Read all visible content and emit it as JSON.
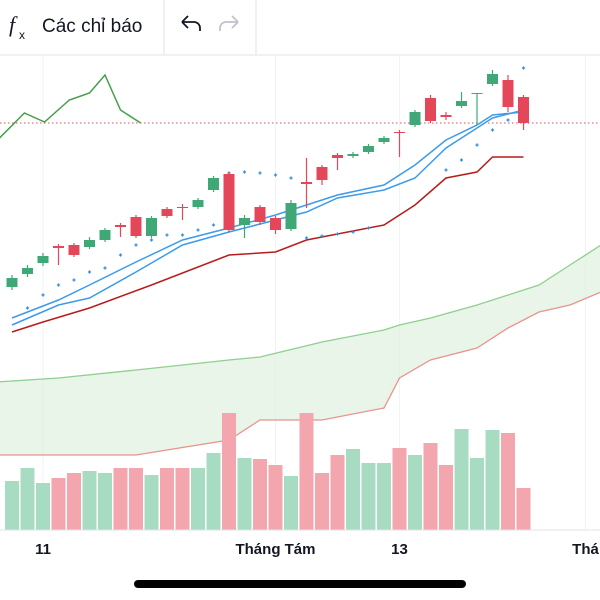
{
  "toolbar": {
    "icon": [
      "f",
      "x"
    ],
    "label": "Các chỉ báo"
  },
  "chart_data": {
    "type": "candlestick",
    "xlim": [
      -0.774,
      37.935
    ],
    "ylim": [
      0,
      475
    ],
    "xticks": [
      {
        "value": 2,
        "label": "11"
      },
      {
        "value": 17,
        "label": "Tháng Tám"
      },
      {
        "value": 25,
        "label": "13"
      },
      {
        "value": 37,
        "label": "Thá"
      }
    ],
    "grid": true,
    "candles": {
      "up_color": "#3fa876",
      "down_color": "#e5475a",
      "open": [
        243,
        256,
        267,
        284,
        285,
        283,
        290,
        305,
        313,
        294,
        321,
        323,
        323,
        340,
        356,
        305,
        323,
        312,
        301,
        348,
        363,
        375,
        374,
        378,
        388,
        398,
        405,
        432,
        415,
        424,
        436,
        446,
        450,
        433
      ],
      "high": [
        255,
        265,
        277,
        286,
        287,
        293,
        302,
        307,
        315,
        314,
        323,
        326,
        332,
        354,
        358,
        315,
        325,
        314,
        330,
        372,
        365,
        377,
        378,
        386,
        394,
        400,
        420,
        435,
        418,
        438,
        437,
        460,
        455,
        435
      ],
      "low": [
        240,
        253,
        264,
        265,
        273,
        281,
        288,
        293,
        292,
        292,
        312,
        310,
        321,
        338,
        298,
        292,
        305,
        296,
        299,
        322,
        345,
        360,
        372,
        376,
        386,
        373,
        403,
        407,
        410,
        422,
        405,
        444,
        418,
        400
      ],
      "close": [
        252,
        262,
        274,
        282,
        275,
        290,
        300,
        303,
        294,
        312,
        314,
        322,
        330,
        352,
        300,
        312,
        308,
        300,
        327,
        346,
        350,
        372,
        376,
        384,
        392,
        397,
        418,
        409,
        413,
        429,
        437,
        456,
        423,
        407
      ]
    },
    "volume": {
      "up_color": "#a8dcc2",
      "down_color": "#f4a6ae",
      "values": [
        49,
        62,
        47,
        52,
        57,
        59,
        57,
        62,
        62,
        55,
        62,
        62,
        62,
        77,
        117,
        72,
        71,
        65,
        54,
        117,
        57,
        75,
        81,
        67,
        67,
        82,
        75,
        87,
        65,
        101,
        72,
        100,
        97,
        42
      ]
    },
    "cloud": {
      "fill": "#d8efd8",
      "upper_color": "#8fcf8f",
      "lower_color": "#e8948c",
      "x": [
        -1,
        3,
        8,
        14,
        16,
        20,
        24,
        25,
        27,
        30,
        32,
        34,
        36,
        38
      ],
      "upper": [
        148,
        152,
        160,
        170,
        173,
        188,
        200,
        205,
        212,
        225,
        235,
        245,
        265,
        285
      ],
      "lower": [
        75,
        75,
        75,
        90,
        110,
        110,
        122,
        152,
        170,
        182,
        202,
        218,
        225,
        238
      ]
    },
    "lines": [
      {
        "color": "#3d9be9",
        "x": [
          0,
          3,
          5,
          8,
          11,
          14,
          17,
          19,
          21,
          24,
          26,
          28,
          30,
          31,
          33
        ],
        "values": [
          212,
          230,
          245,
          268,
          290,
          302,
          315,
          325,
          335,
          345,
          365,
          390,
          405,
          415,
          418
        ]
      },
      {
        "color": "#3d9be9",
        "x": [
          0,
          3,
          5,
          8,
          11,
          14,
          17,
          19,
          21,
          24,
          26,
          28,
          30,
          31,
          33
        ],
        "values": [
          205,
          225,
          232,
          258,
          285,
          298,
          310,
          318,
          332,
          340,
          352,
          382,
          402,
          412,
          420
        ]
      },
      {
        "color": "#b71c1c",
        "x": [
          0,
          2,
          5,
          9,
          14,
          17,
          19,
          24,
          26,
          28,
          30,
          31,
          33
        ],
        "values": [
          198,
          208,
          222,
          245,
          275,
          278,
          290,
          305,
          325,
          352,
          358,
          373,
          373
        ]
      },
      {
        "color": "#43a047",
        "x": [
          -0.8,
          0.8,
          2.1,
          3.7,
          5,
          6,
          7,
          8.3
        ],
        "values": [
          392,
          417,
          408,
          430,
          437,
          455,
          420,
          407
        ]
      }
    ],
    "sar": {
      "color": "#2f8fe0",
      "x": [
        1,
        2,
        3,
        4,
        5,
        6,
        7,
        8,
        9,
        10,
        11,
        12,
        13,
        14,
        15,
        16,
        17,
        18,
        19,
        20,
        21,
        22,
        23,
        28,
        29,
        30,
        31,
        32,
        33
      ],
      "values": [
        222,
        235,
        245,
        250,
        258,
        262,
        275,
        285,
        290,
        295,
        295,
        300,
        305,
        357,
        358,
        357,
        355,
        352,
        292,
        294,
        296,
        298,
        302,
        360,
        370,
        385,
        400,
        410,
        462
      ]
    },
    "last_price": {
      "value": 407,
      "color": "#e5475a"
    }
  }
}
